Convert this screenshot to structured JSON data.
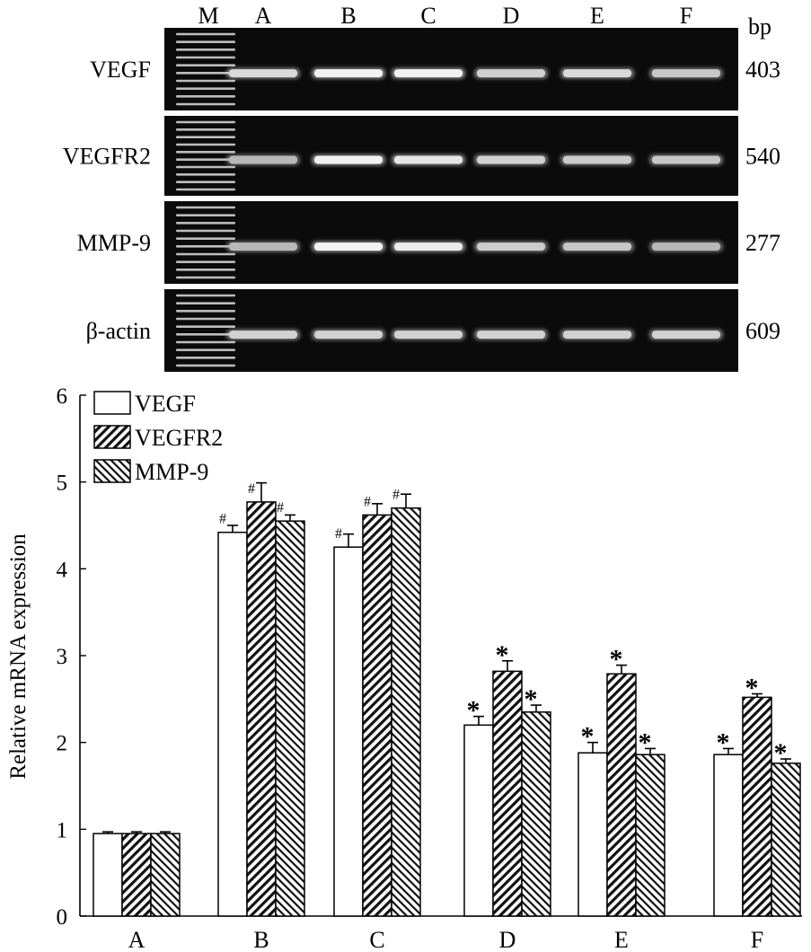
{
  "gel": {
    "lane_labels": [
      "M",
      "A",
      "B",
      "C",
      "D",
      "E",
      "F"
    ],
    "size_unit": "bp",
    "rows": [
      {
        "gene": "VEGF",
        "size": "403",
        "intensity": [
          0.85,
          0.95,
          0.95,
          0.82,
          0.85,
          0.78
        ]
      },
      {
        "gene": "VEGFR2",
        "size": "540",
        "intensity": [
          0.72,
          0.95,
          0.9,
          0.82,
          0.8,
          0.78
        ]
      },
      {
        "gene": "MMP-9",
        "size": "277",
        "intensity": [
          0.72,
          0.95,
          0.92,
          0.8,
          0.78,
          0.72
        ]
      },
      {
        "gene": "β-actin",
        "size": "609",
        "intensity": [
          0.82,
          0.82,
          0.82,
          0.82,
          0.82,
          0.82
        ]
      }
    ]
  },
  "chart_data": {
    "type": "bar",
    "categories": [
      "A",
      "B",
      "C",
      "D",
      "E",
      "F"
    ],
    "ylabel": "Relative mRNA expression",
    "xlabel": "",
    "ylim": [
      0,
      6
    ],
    "yticks": [
      "0",
      "1",
      "2",
      "3",
      "4",
      "5",
      "6"
    ],
    "legend_position": "top-left",
    "series": [
      {
        "name": "VEGF",
        "pattern": "open",
        "values": [
          0.95,
          4.42,
          4.25,
          2.2,
          1.88,
          1.86
        ],
        "errors": [
          0.02,
          0.08,
          0.15,
          0.1,
          0.12,
          0.07
        ],
        "marks": [
          "",
          "#",
          "#",
          "*",
          "*",
          "*"
        ]
      },
      {
        "name": "VEGFR2",
        "pattern": "diagonal-right",
        "values": [
          0.95,
          4.77,
          4.62,
          2.82,
          2.79,
          2.52
        ],
        "errors": [
          0.02,
          0.22,
          0.13,
          0.12,
          0.1,
          0.04
        ],
        "marks": [
          "",
          "#",
          "#",
          "*",
          "*",
          "*"
        ]
      },
      {
        "name": "MMP-9",
        "pattern": "diagonal-left",
        "values": [
          0.95,
          4.55,
          4.7,
          2.35,
          1.86,
          1.76
        ],
        "errors": [
          0.02,
          0.07,
          0.16,
          0.08,
          0.07,
          0.05
        ],
        "marks": [
          "",
          "#",
          "#",
          "*",
          "*",
          "*"
        ]
      }
    ]
  }
}
